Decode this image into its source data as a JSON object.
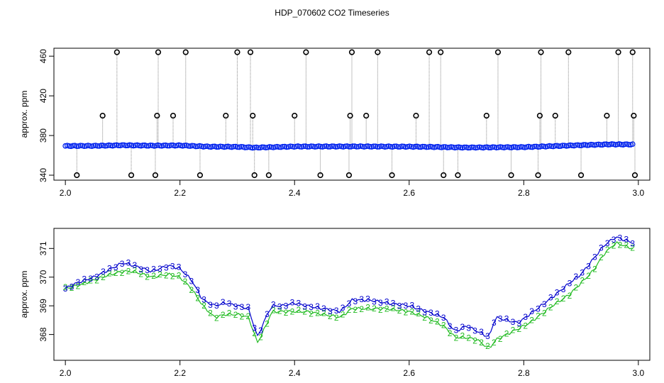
{
  "title": "HDP_070602  CO2 Timeseries",
  "chart_data": [
    {
      "type": "scatter",
      "ylabel": "approx. ppm",
      "xlim": [
        1.98,
        3.02
      ],
      "ylim": [
        335,
        468
      ],
      "xticks": [
        "2.0",
        "2.2",
        "2.4",
        "2.6",
        "2.8",
        "3.0"
      ],
      "yticks": [
        "340",
        "380",
        "420",
        "460"
      ],
      "baseline": [
        [
          2.0,
          369.5
        ],
        [
          2.05,
          369.6
        ],
        [
          2.1,
          370.2
        ],
        [
          2.15,
          369.8
        ],
        [
          2.2,
          370.0
        ],
        [
          2.25,
          368.8
        ],
        [
          2.3,
          368.6
        ],
        [
          2.33,
          367.8
        ],
        [
          2.4,
          368.9
        ],
        [
          2.5,
          369.0
        ],
        [
          2.6,
          368.8
        ],
        [
          2.65,
          368.4
        ],
        [
          2.7,
          367.9
        ],
        [
          2.8,
          368.3
        ],
        [
          2.85,
          369.3
        ],
        [
          2.9,
          370.3
        ],
        [
          2.95,
          371.1
        ],
        [
          2.99,
          371.0
        ]
      ],
      "spikes": [
        [
          2.02,
          340
        ],
        [
          2.065,
          400
        ],
        [
          2.09,
          464
        ],
        [
          2.115,
          340
        ],
        [
          2.157,
          340
        ],
        [
          2.16,
          400
        ],
        [
          2.162,
          464
        ],
        [
          2.188,
          400
        ],
        [
          2.21,
          464
        ],
        [
          2.235,
          340
        ],
        [
          2.28,
          400
        ],
        [
          2.3,
          464
        ],
        [
          2.323,
          464
        ],
        [
          2.327,
          400
        ],
        [
          2.33,
          340
        ],
        [
          2.355,
          340
        ],
        [
          2.4,
          400
        ],
        [
          2.42,
          464
        ],
        [
          2.445,
          340
        ],
        [
          2.495,
          340
        ],
        [
          2.497,
          400
        ],
        [
          2.5,
          464
        ],
        [
          2.525,
          400
        ],
        [
          2.545,
          464
        ],
        [
          2.57,
          340
        ],
        [
          2.612,
          400
        ],
        [
          2.635,
          464
        ],
        [
          2.655,
          464
        ],
        [
          2.66,
          340
        ],
        [
          2.685,
          340
        ],
        [
          2.735,
          400
        ],
        [
          2.755,
          464
        ],
        [
          2.778,
          340
        ],
        [
          2.825,
          340
        ],
        [
          2.828,
          400
        ],
        [
          2.83,
          464
        ],
        [
          2.855,
          400
        ],
        [
          2.878,
          464
        ],
        [
          2.9,
          340
        ],
        [
          2.945,
          400
        ],
        [
          2.965,
          464
        ],
        [
          2.99,
          464
        ],
        [
          2.992,
          400
        ],
        [
          2.994,
          340
        ]
      ]
    },
    {
      "type": "line",
      "ylabel": "approx. ppm",
      "xlim": [
        1.98,
        3.02
      ],
      "ylim": [
        367.1,
        371.7
      ],
      "xticks": [
        "2.0",
        "2.2",
        "2.4",
        "2.6",
        "2.8",
        "3.0"
      ],
      "yticks": [
        "368",
        "369",
        "370",
        "371"
      ],
      "series": [
        {
          "marker": "3",
          "color": "#0000cc",
          "points": [
            [
              2.0,
              369.6
            ],
            [
              2.02,
              369.8
            ],
            [
              2.05,
              370.0
            ],
            [
              2.08,
              370.3
            ],
            [
              2.1,
              370.5
            ],
            [
              2.12,
              370.4
            ],
            [
              2.15,
              370.2
            ],
            [
              2.18,
              370.4
            ],
            [
              2.2,
              370.3
            ],
            [
              2.22,
              369.9
            ],
            [
              2.24,
              369.2
            ],
            [
              2.26,
              369.0
            ],
            [
              2.28,
              369.1
            ],
            [
              2.3,
              369.0
            ],
            [
              2.32,
              368.9
            ],
            [
              2.335,
              367.9
            ],
            [
              2.35,
              368.6
            ],
            [
              2.36,
              369.0
            ],
            [
              2.38,
              369.0
            ],
            [
              2.4,
              369.1
            ],
            [
              2.42,
              369.0
            ],
            [
              2.45,
              368.9
            ],
            [
              2.48,
              368.8
            ],
            [
              2.5,
              369.2
            ],
            [
              2.53,
              369.2
            ],
            [
              2.56,
              369.1
            ],
            [
              2.6,
              369.0
            ],
            [
              2.63,
              368.8
            ],
            [
              2.66,
              368.6
            ],
            [
              2.68,
              368.1
            ],
            [
              2.7,
              368.3
            ],
            [
              2.72,
              368.1
            ],
            [
              2.74,
              367.9
            ],
            [
              2.75,
              368.6
            ],
            [
              2.77,
              368.5
            ],
            [
              2.79,
              368.4
            ],
            [
              2.81,
              368.7
            ],
            [
              2.83,
              369.0
            ],
            [
              2.85,
              369.3
            ],
            [
              2.88,
              369.8
            ],
            [
              2.9,
              370.1
            ],
            [
              2.92,
              370.6
            ],
            [
              2.94,
              371.1
            ],
            [
              2.96,
              371.4
            ],
            [
              2.99,
              371.2
            ]
          ]
        },
        {
          "marker": "2",
          "color": "#22bb22",
          "points": [
            [
              2.0,
              369.6
            ],
            [
              2.02,
              369.7
            ],
            [
              2.05,
              369.9
            ],
            [
              2.08,
              370.1
            ],
            [
              2.1,
              370.2
            ],
            [
              2.12,
              370.2
            ],
            [
              2.15,
              370.0
            ],
            [
              2.18,
              370.1
            ],
            [
              2.2,
              370.0
            ],
            [
              2.22,
              369.6
            ],
            [
              2.24,
              369.0
            ],
            [
              2.26,
              368.6
            ],
            [
              2.28,
              368.7
            ],
            [
              2.3,
              368.7
            ],
            [
              2.32,
              368.6
            ],
            [
              2.335,
              367.7
            ],
            [
              2.35,
              368.3
            ],
            [
              2.36,
              368.8
            ],
            [
              2.38,
              368.8
            ],
            [
              2.4,
              368.8
            ],
            [
              2.42,
              368.8
            ],
            [
              2.45,
              368.7
            ],
            [
              2.48,
              368.6
            ],
            [
              2.5,
              368.9
            ],
            [
              2.53,
              368.9
            ],
            [
              2.56,
              368.9
            ],
            [
              2.6,
              368.8
            ],
            [
              2.63,
              368.6
            ],
            [
              2.66,
              368.3
            ],
            [
              2.68,
              367.9
            ],
            [
              2.7,
              367.9
            ],
            [
              2.72,
              367.8
            ],
            [
              2.74,
              367.5
            ],
            [
              2.75,
              367.8
            ],
            [
              2.77,
              368.0
            ],
            [
              2.79,
              368.2
            ],
            [
              2.81,
              368.4
            ],
            [
              2.83,
              368.7
            ],
            [
              2.85,
              369.0
            ],
            [
              2.88,
              369.4
            ],
            [
              2.9,
              369.8
            ],
            [
              2.92,
              370.2
            ],
            [
              2.94,
              370.8
            ],
            [
              2.96,
              371.2
            ],
            [
              2.99,
              371.0
            ]
          ]
        }
      ]
    }
  ]
}
